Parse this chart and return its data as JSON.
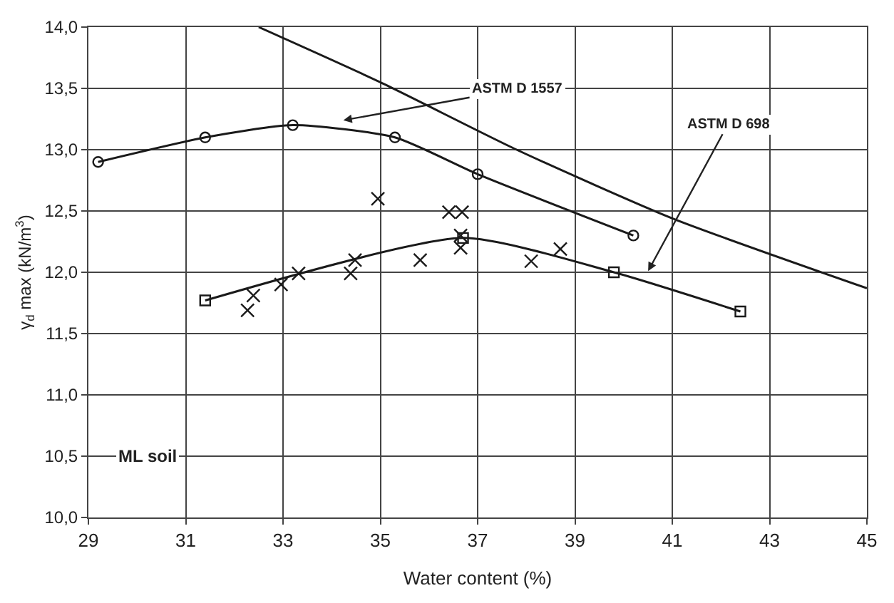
{
  "chart_data": {
    "type": "line",
    "xlabel": "Water content (%)",
    "ylabel": "γ$_{d}$ max (kN/m$^{3}$)",
    "xlim": [
      29,
      45
    ],
    "xticks": [
      29,
      31,
      33,
      35,
      37,
      39,
      41,
      43,
      45
    ],
    "ylim": [
      10,
      14
    ],
    "yticks": [
      {
        "value": 10,
        "label": "10,0"
      },
      {
        "value": 10.5,
        "label": "10,5"
      },
      {
        "value": 11,
        "label": "11,0"
      },
      {
        "value": 11.5,
        "label": "11,5"
      },
      {
        "value": 12,
        "label": "12,0"
      },
      {
        "value": 12.5,
        "label": "12,5"
      },
      {
        "value": 13,
        "label": "13,0"
      },
      {
        "value": 13.5,
        "label": "13,5"
      },
      {
        "value": 14,
        "label": "14,0"
      }
    ],
    "grid": true,
    "series": [
      {
        "color": "#1a1a1a",
        "marker": "circle",
        "x": [
          29.2,
          31.4,
          33.2,
          35.3,
          37.0,
          40.2
        ],
        "values": [
          12.9,
          13.1,
          13.2,
          13.1,
          12.8,
          12.3
        ]
      },
      {
        "color": "#1a1a1a",
        "marker": "square",
        "x": [
          31.4,
          36.7,
          39.8,
          42.4
        ],
        "values": [
          11.77,
          12.28,
          12.0,
          11.68
        ]
      },
      {
        "color": "#1a1a1a",
        "marker": "none",
        "x": [
          32.5,
          35.0,
          37.8,
          41.0,
          45.0
        ],
        "values": [
          14.0,
          13.55,
          13.0,
          12.44,
          11.87
        ]
      },
      {
        "type": "scatter",
        "color": "#1a1a1a",
        "marker": "cross",
        "x": [
          32.39,
          32.27,
          32.96,
          33.32,
          34.39,
          34.48,
          34.95,
          35.82,
          36.41,
          36.68,
          36.65,
          36.65,
          38.1,
          38.7
        ],
        "values": [
          11.81,
          11.69,
          11.9,
          11.99,
          11.99,
          12.1,
          12.6,
          12.1,
          12.49,
          12.49,
          12.2,
          12.3,
          12.09,
          12.19
        ]
      }
    ],
    "annotations": [
      "ASTM D 1557",
      "ASTM D 698",
      "ML soil"
    ]
  }
}
